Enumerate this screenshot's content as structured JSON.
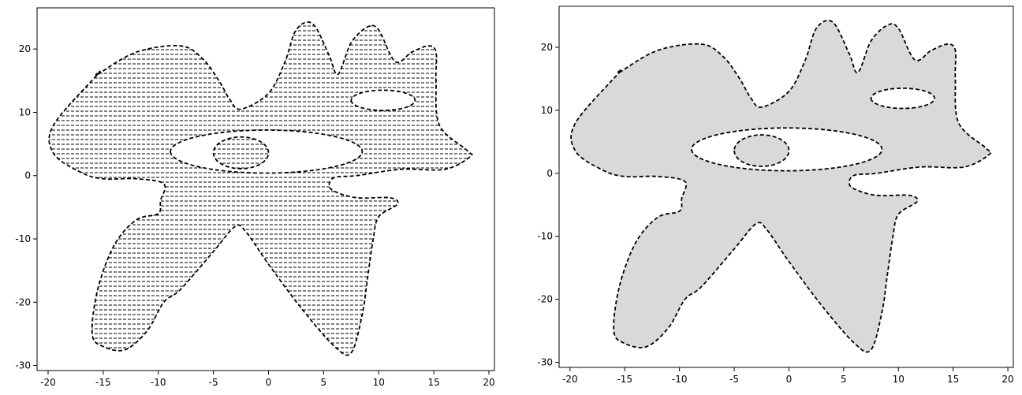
{
  "chart_data": [
    {
      "type": "area",
      "title": "",
      "xlabel": "",
      "ylabel": "",
      "xlim": [
        -21,
        20.5
      ],
      "ylim": [
        -30.8,
        26.5
      ],
      "xticks": [
        -20,
        -15,
        -10,
        -5,
        0,
        5,
        10,
        15,
        20
      ],
      "yticks": [
        -30,
        -20,
        -10,
        0,
        10,
        20
      ],
      "fill_style": "horizontal-hatch",
      "fill_color": "#ffffff",
      "hatch_color": "#000000",
      "outline_style": "dashed",
      "grid": false,
      "regions": [
        {
          "name": "outer",
          "x": [
            -15.5,
            -12,
            -8,
            -6,
            -4.5,
            -3.5,
            -2.5,
            0,
            1.5,
            2.5,
            4,
            5.5,
            6.3,
            7.5,
            9,
            10,
            11.5,
            13,
            14.5,
            15.2,
            15.2,
            15.5,
            18,
            18.3,
            16,
            12,
            8,
            6,
            5.5,
            6,
            8,
            11,
            11.7,
            10,
            9.5,
            9,
            8.5,
            7.5,
            6,
            3,
            0,
            -2,
            -3,
            -5,
            -8,
            -9.5,
            -11,
            -13,
            -15,
            -16,
            -15.5,
            -14,
            -12,
            -10,
            -9.8,
            -9.5,
            -12,
            -15,
            -17,
            -19.5,
            -19.5,
            -15.5
          ],
          "y": [
            16,
            19.5,
            20.5,
            18.5,
            15,
            12,
            10.5,
            13,
            18,
            23,
            24,
            19,
            16,
            21,
            23.5,
            23,
            18,
            19.5,
            20.5,
            19.5,
            15,
            8,
            4,
            3,
            1,
            1,
            0,
            -0.3,
            -1.5,
            -2.5,
            -3.5,
            -3.5,
            -4.5,
            -6.5,
            -10,
            -16,
            -22,
            -28,
            -27,
            -21,
            -14,
            -9,
            -8,
            -12,
            -18,
            -20,
            -24.5,
            -27.5,
            -27,
            -25,
            -18,
            -11,
            -7,
            -6,
            -4,
            -1.3,
            -0.5,
            -0.5,
            0.5,
            3.5,
            8,
            16
          ]
        },
        {
          "name": "large-inner-ellipse",
          "center": [
            -0.2,
            3.8
          ],
          "radius": [
            8.7,
            3.4
          ],
          "filled": false
        },
        {
          "name": "small-center-ellipse",
          "center": [
            -2.5,
            3.6
          ],
          "radius": [
            2.5,
            2.5
          ],
          "filled": true
        },
        {
          "name": "right-ellipse",
          "center": [
            10.4,
            11.9
          ],
          "radius": [
            2.9,
            1.6
          ],
          "filled": false
        }
      ]
    },
    {
      "type": "area",
      "title": "",
      "xlabel": "",
      "ylabel": "",
      "xlim": [
        -21,
        20.5
      ],
      "ylim": [
        -30.8,
        26.5
      ],
      "xticks": [
        -20,
        -15,
        -10,
        -5,
        0,
        5,
        10,
        15,
        20
      ],
      "yticks": [
        -30,
        -20,
        -10,
        0,
        10,
        20
      ],
      "fill_style": "solid",
      "fill_color": "#d9d9d9",
      "outline_style": "dashed",
      "grid": false,
      "regions": [
        {
          "name": "outer",
          "x": [
            -15.5,
            -12,
            -8,
            -6,
            -4.5,
            -3.5,
            -2.5,
            0,
            1.5,
            2.5,
            4,
            5.5,
            6.3,
            7.5,
            9,
            10,
            11.5,
            13,
            14.5,
            15.2,
            15.2,
            15.5,
            18,
            18.3,
            16,
            12,
            8,
            6,
            5.5,
            6,
            8,
            11,
            11.7,
            10,
            9.5,
            9,
            8.5,
            7.5,
            6,
            3,
            0,
            -2,
            -3,
            -5,
            -8,
            -9.5,
            -11,
            -13,
            -15,
            -16,
            -15.5,
            -14,
            -12,
            -10,
            -9.8,
            -9.5,
            -12,
            -15,
            -17,
            -19.5,
            -19.5,
            -15.5
          ],
          "y": [
            16,
            19.5,
            20.5,
            18.5,
            15,
            12,
            10.5,
            13,
            18,
            23,
            24,
            19,
            16,
            21,
            23.5,
            23,
            18,
            19.5,
            20.5,
            19.5,
            15,
            8,
            4,
            3,
            1,
            1,
            0,
            -0.3,
            -1.5,
            -2.5,
            -3.5,
            -3.5,
            -4.5,
            -6.5,
            -10,
            -16,
            -22,
            -28,
            -27,
            -21,
            -14,
            -9,
            -8,
            -12,
            -18,
            -20,
            -24.5,
            -27.5,
            -27,
            -25,
            -18,
            -11,
            -7,
            -6,
            -4,
            -1.3,
            -0.5,
            -0.5,
            0.5,
            3.5,
            8,
            16
          ]
        },
        {
          "name": "large-inner-ellipse",
          "center": [
            -0.2,
            3.8
          ],
          "radius": [
            8.7,
            3.4
          ],
          "filled": false
        },
        {
          "name": "small-center-ellipse",
          "center": [
            -2.5,
            3.6
          ],
          "radius": [
            2.5,
            2.5
          ],
          "filled": true
        },
        {
          "name": "right-ellipse",
          "center": [
            10.4,
            11.9
          ],
          "radius": [
            2.9,
            1.6
          ],
          "filled": false
        }
      ]
    }
  ]
}
